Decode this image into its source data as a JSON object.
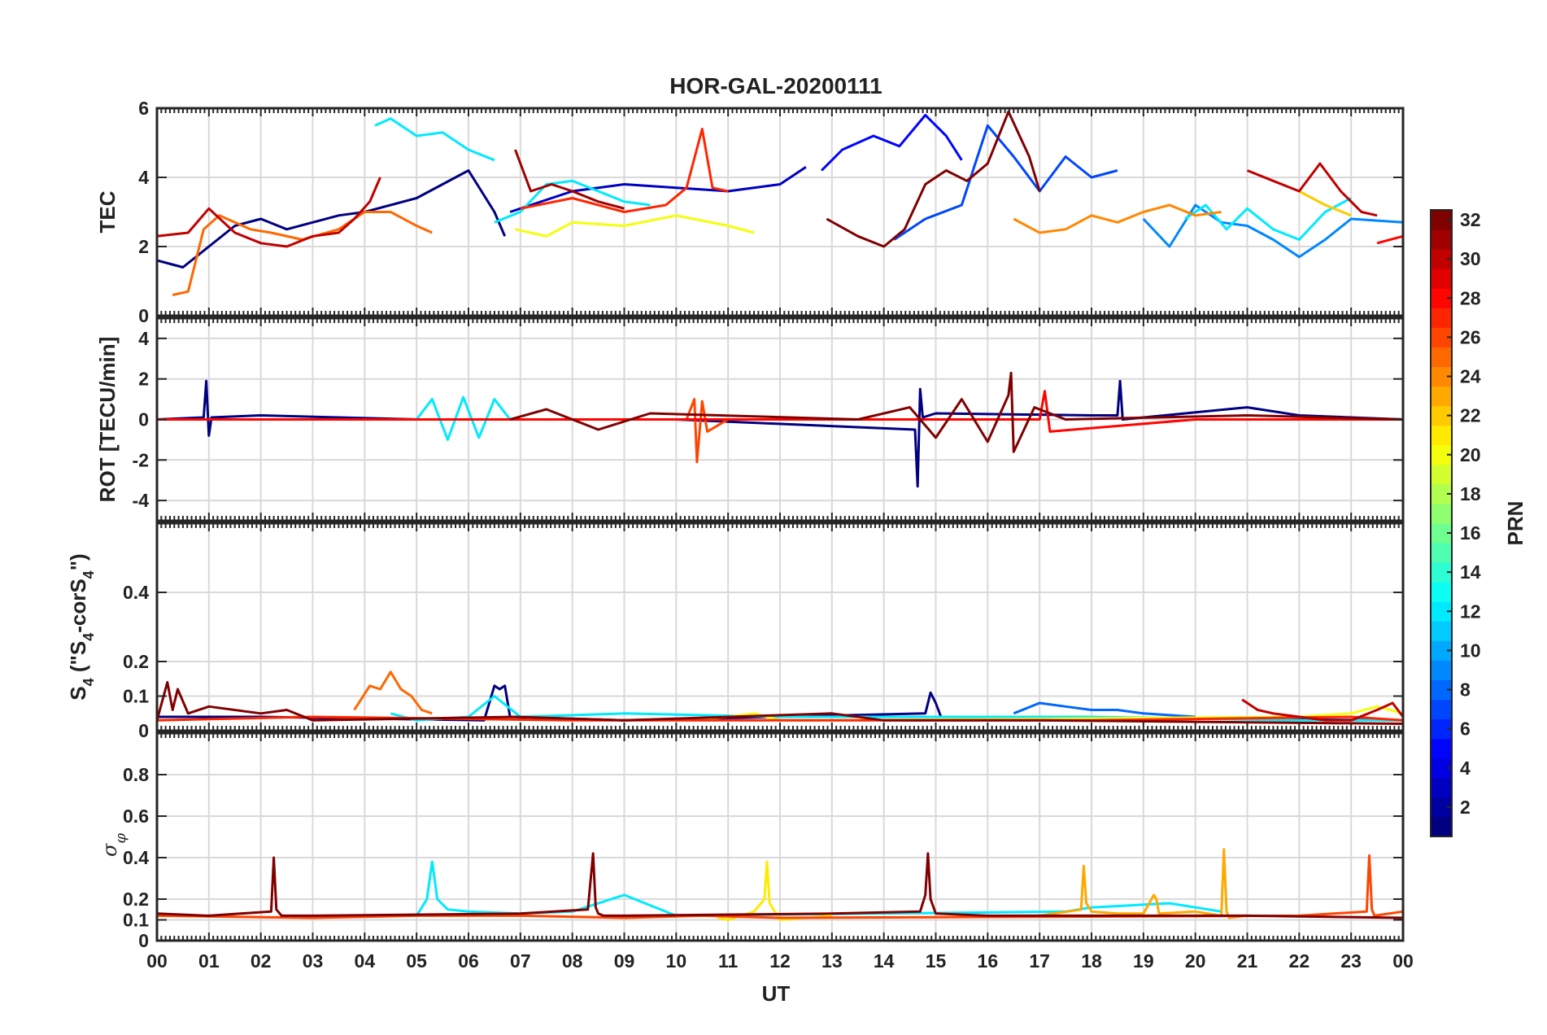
{
  "figure": {
    "title": "HOR-GAL-20200111",
    "xlabel": "UT",
    "x_ticklabels": [
      "00",
      "01",
      "02",
      "03",
      "04",
      "05",
      "06",
      "07",
      "08",
      "09",
      "10",
      "11",
      "12",
      "13",
      "14",
      "15",
      "16",
      "17",
      "18",
      "19",
      "20",
      "21",
      "22",
      "23",
      "00"
    ],
    "colorbar_label": "PRN"
  },
  "chart_data": [
    {
      "type": "line",
      "panel": "TEC",
      "ylabel": "TEC",
      "ylim": [
        0,
        6
      ],
      "yticks": [
        0,
        2,
        4,
        6
      ],
      "xlim": [
        0,
        24
      ],
      "grid": true,
      "series": [
        {
          "prn": 1,
          "x": [
            0.0,
            0.5,
            1.0,
            1.5,
            2.0,
            2.5,
            3.0,
            3.5,
            4.0,
            4.5,
            5.0,
            5.5,
            6.0,
            6.5,
            6.7
          ],
          "y": [
            1.6,
            1.4,
            2.0,
            2.6,
            2.8,
            2.5,
            2.7,
            2.9,
            3.0,
            3.2,
            3.4,
            3.8,
            4.2,
            3.0,
            2.3
          ]
        },
        {
          "prn": 3,
          "x": [
            6.8,
            8.0,
            9.0,
            10.0,
            11.0,
            12.0,
            12.5
          ],
          "y": [
            3.0,
            3.6,
            3.8,
            3.7,
            3.6,
            3.8,
            4.3
          ]
        },
        {
          "prn": 5,
          "x": [
            12.8,
            13.2,
            13.8,
            14.3,
            14.8,
            15.2,
            15.5
          ],
          "y": [
            4.2,
            4.8,
            5.2,
            4.9,
            5.8,
            5.2,
            4.5
          ]
        },
        {
          "prn": 7,
          "x": [
            14.2,
            14.8,
            15.5,
            16.0,
            16.5,
            17.0,
            17.5,
            18.0,
            18.5
          ],
          "y": [
            2.2,
            2.8,
            3.2,
            5.5,
            4.6,
            3.6,
            4.6,
            4.0,
            4.2
          ]
        },
        {
          "prn": 9,
          "x": [
            19.0,
            19.5,
            20.0,
            20.5,
            21.0,
            21.5,
            22.0,
            22.5,
            23.0,
            24.0
          ],
          "y": [
            2.8,
            2.0,
            3.2,
            2.7,
            2.6,
            2.2,
            1.7,
            2.2,
            2.8,
            2.7
          ]
        },
        {
          "prn": 12,
          "x": [
            4.2,
            4.5,
            5.0,
            5.5,
            6.0,
            6.5
          ],
          "y": [
            5.5,
            5.7,
            5.2,
            5.3,
            4.8,
            4.5
          ]
        },
        {
          "prn": 12,
          "x": [
            6.5,
            7.0,
            7.5,
            8.0,
            8.5,
            9.0,
            9.5
          ],
          "y": [
            2.7,
            3.0,
            3.8,
            3.9,
            3.6,
            3.3,
            3.2
          ]
        },
        {
          "prn": 12,
          "x": [
            19.8,
            20.2,
            20.6,
            21.0,
            21.5,
            22.0,
            22.5,
            23.0
          ],
          "y": [
            2.8,
            3.2,
            2.5,
            3.1,
            2.5,
            2.2,
            3.0,
            3.4
          ]
        },
        {
          "prn": 20,
          "x": [
            6.9,
            7.5,
            8.0,
            9.0,
            10.0,
            11.0,
            11.5
          ],
          "y": [
            2.5,
            2.3,
            2.7,
            2.6,
            2.9,
            2.6,
            2.4
          ]
        },
        {
          "prn": 22,
          "x": [
            22.0,
            22.5,
            23.0
          ],
          "y": [
            3.6,
            3.2,
            2.9
          ]
        },
        {
          "prn": 24,
          "x": [
            16.5,
            17.0,
            17.5,
            18.0,
            18.5,
            19.0,
            19.5,
            20.0,
            20.5
          ],
          "y": [
            2.8,
            2.4,
            2.5,
            2.9,
            2.7,
            3.0,
            3.2,
            2.9,
            3.0
          ]
        },
        {
          "prn": 25,
          "x": [
            0.3,
            0.6,
            0.9,
            1.2,
            1.8,
            2.2,
            2.8,
            3.5,
            4.0,
            4.5,
            5.0,
            5.3
          ],
          "y": [
            0.6,
            0.7,
            2.5,
            2.9,
            2.5,
            2.4,
            2.2,
            2.5,
            3.0,
            3.0,
            2.6,
            2.4
          ]
        },
        {
          "prn": 27,
          "x": [
            7.0,
            8.0,
            9.0,
            9.8,
            10.2,
            10.5,
            10.7,
            11.0
          ],
          "y": [
            3.1,
            3.4,
            3.0,
            3.2,
            3.7,
            5.4,
            3.7,
            3.6
          ]
        },
        {
          "prn": 28,
          "x": [
            23.5,
            24.0
          ],
          "y": [
            2.1,
            2.3
          ]
        },
        {
          "prn": 30,
          "x": [
            0.0,
            0.6,
            1.0,
            1.5,
            2.0,
            2.5,
            3.0,
            3.5,
            3.8,
            4.1,
            4.3
          ],
          "y": [
            2.3,
            2.4,
            3.1,
            2.4,
            2.1,
            2.0,
            2.3,
            2.4,
            2.8,
            3.3,
            4.0
          ]
        },
        {
          "prn": 30,
          "x": [
            21.0,
            21.5,
            22.0,
            22.4,
            22.8,
            23.2,
            23.5
          ],
          "y": [
            4.2,
            3.9,
            3.6,
            4.4,
            3.6,
            3.0,
            2.9
          ]
        },
        {
          "prn": 31,
          "x": [
            6.9,
            7.2,
            7.6,
            8.0,
            8.5,
            9.0
          ],
          "y": [
            4.8,
            3.6,
            3.8,
            3.6,
            3.3,
            3.1
          ]
        },
        {
          "prn": 32,
          "x": [
            12.9,
            13.5,
            14.0,
            14.4,
            14.8,
            15.2,
            15.6,
            16.0,
            16.4,
            16.8,
            17.0
          ],
          "y": [
            2.8,
            2.3,
            2.0,
            2.5,
            3.8,
            4.2,
            3.9,
            4.4,
            5.9,
            4.6,
            3.6
          ]
        }
      ]
    },
    {
      "type": "line",
      "panel": "ROT",
      "ylabel": "ROT [TECU/min]",
      "ylim": [
        -5,
        5
      ],
      "yticks": [
        -4,
        -2,
        0,
        2,
        4
      ],
      "xlim": [
        0,
        24
      ],
      "grid": true,
      "series": [
        {
          "prn": 1,
          "x": [
            0.0,
            0.9,
            0.95,
            1.0,
            1.05,
            2.0,
            5.0,
            10.0,
            14.6,
            14.65,
            14.7,
            14.75,
            15.0,
            18.0,
            18.5,
            18.55,
            18.6,
            21.0,
            22.0,
            24.0
          ],
          "y": [
            0.0,
            0.1,
            1.9,
            -0.8,
            0.1,
            0.2,
            0.0,
            0.0,
            -0.5,
            -3.3,
            1.5,
            0.1,
            0.3,
            0.2,
            0.2,
            1.9,
            0.0,
            0.6,
            0.2,
            0.0
          ]
        },
        {
          "prn": 12,
          "x": [
            5.0,
            5.3,
            5.6,
            5.9,
            6.2,
            6.5,
            6.8
          ],
          "y": [
            0.0,
            1.0,
            -1.0,
            1.1,
            -0.9,
            1.0,
            0.0
          ]
        },
        {
          "prn": 20,
          "x": [
            11.0,
            12.0,
            13.0
          ],
          "y": [
            0.0,
            0.0,
            0.0
          ]
        },
        {
          "prn": 26,
          "x": [
            10.2,
            10.35,
            10.4,
            10.5,
            10.6,
            11.0
          ],
          "y": [
            0.0,
            1.0,
            -2.1,
            0.9,
            -0.6,
            0.0
          ]
        },
        {
          "prn": 28,
          "x": [
            0.0,
            5.0,
            10.0,
            15.0,
            17.0,
            17.1,
            17.2,
            20.0,
            24.0
          ],
          "y": [
            0.0,
            0.0,
            0.0,
            0.0,
            0.0,
            1.4,
            -0.6,
            0.0,
            0.0
          ]
        },
        {
          "prn": 32,
          "x": [
            6.8,
            7.5,
            8.5,
            9.5,
            13.5,
            14.5,
            15.0,
            15.5,
            16.0,
            16.4,
            16.45,
            16.5,
            16.9,
            17.5,
            21.0,
            24.0
          ],
          "y": [
            0.0,
            0.5,
            -0.5,
            0.3,
            0.0,
            0.6,
            -0.9,
            1.0,
            -1.1,
            1.2,
            2.3,
            -1.6,
            0.6,
            0.0,
            0.2,
            0.0
          ]
        }
      ]
    },
    {
      "type": "line",
      "panel": "S4",
      "ylabel": "S4 (\"S4-corS4\")",
      "ylim": [
        0,
        0.6
      ],
      "yticks": [
        0,
        0.1,
        0.2,
        0.4
      ],
      "xlim": [
        0,
        24
      ],
      "grid": true,
      "series": [
        {
          "prn": 1,
          "x": [
            0.0,
            2.0,
            6.3,
            6.5,
            6.6,
            6.7,
            6.8,
            9.0,
            14.8,
            14.9,
            15.0,
            15.1,
            16.0,
            24.0
          ],
          "y": [
            0.04,
            0.04,
            0.03,
            0.13,
            0.12,
            0.13,
            0.04,
            0.03,
            0.05,
            0.11,
            0.08,
            0.04,
            0.04,
            0.03
          ]
        },
        {
          "prn": 8,
          "x": [
            16.5,
            17.0,
            17.5,
            18.0,
            18.5,
            19.0,
            20.0
          ],
          "y": [
            0.05,
            0.08,
            0.07,
            0.06,
            0.06,
            0.05,
            0.04
          ]
        },
        {
          "prn": 12,
          "x": [
            4.5,
            5.0,
            6.0,
            6.5,
            7.0,
            9.0,
            12.0,
            18.0,
            22.0,
            24.0
          ],
          "y": [
            0.05,
            0.03,
            0.04,
            0.1,
            0.04,
            0.05,
            0.04,
            0.04,
            0.03,
            0.03
          ]
        },
        {
          "prn": 20,
          "x": [
            10.0,
            11.0,
            11.5,
            12.0,
            13.0,
            22.0,
            23.0,
            23.5,
            24.0
          ],
          "y": [
            0.03,
            0.04,
            0.05,
            0.03,
            0.03,
            0.04,
            0.05,
            0.07,
            0.05
          ]
        },
        {
          "prn": 25,
          "x": [
            3.8,
            4.1,
            4.3,
            4.5,
            4.7,
            4.9,
            5.1,
            5.3
          ],
          "y": [
            0.06,
            0.13,
            0.12,
            0.17,
            0.12,
            0.1,
            0.06,
            0.05
          ]
        },
        {
          "prn": 27,
          "x": [
            0.0,
            3.0,
            8.0,
            13.0,
            18.0,
            23.0,
            24.0
          ],
          "y": [
            0.03,
            0.04,
            0.03,
            0.03,
            0.03,
            0.04,
            0.03
          ]
        },
        {
          "prn": 30,
          "x": [
            20.9,
            21.2,
            21.5,
            22.0,
            22.5,
            23.0,
            23.5,
            23.8,
            24.0
          ],
          "y": [
            0.09,
            0.06,
            0.05,
            0.04,
            0.03,
            0.03,
            0.06,
            0.08,
            0.04
          ]
        },
        {
          "prn": 32,
          "x": [
            0.0,
            0.2,
            0.3,
            0.4,
            0.6,
            1.0,
            2.0,
            2.5,
            3.0,
            6.9,
            9.0,
            13.0,
            14.0,
            17.0,
            24.0
          ],
          "y": [
            0.03,
            0.14,
            0.06,
            0.12,
            0.05,
            0.07,
            0.05,
            0.06,
            0.03,
            0.04,
            0.03,
            0.05,
            0.03,
            0.03,
            0.02
          ]
        }
      ]
    },
    {
      "type": "line",
      "panel": "sigma_phi",
      "ylabel": "σφ",
      "ylim": [
        0,
        1.0
      ],
      "yticks": [
        0,
        0.1,
        0.2,
        0.4,
        0.6,
        0.8
      ],
      "xlim": [
        0,
        24
      ],
      "grid": true,
      "series": [
        {
          "prn": 12,
          "x": [
            5.0,
            5.2,
            5.3,
            5.4,
            5.6,
            6.0,
            7.0,
            8.0,
            9.0,
            10.0,
            17.5,
            18.0,
            19.5,
            20.0,
            20.5
          ],
          "y": [
            0.12,
            0.2,
            0.38,
            0.2,
            0.15,
            0.14,
            0.13,
            0.14,
            0.22,
            0.12,
            0.14,
            0.16,
            0.18,
            0.16,
            0.14
          ]
        },
        {
          "prn": 21,
          "x": [
            10.8,
            11.0,
            11.5,
            11.7,
            11.75,
            11.8,
            12.0,
            12.5,
            13.0
          ],
          "y": [
            0.11,
            0.1,
            0.14,
            0.2,
            0.38,
            0.18,
            0.1,
            0.11,
            0.12
          ]
        },
        {
          "prn": 23,
          "x": [
            17.0,
            17.8,
            17.85,
            17.9,
            18.0,
            18.5,
            19.0,
            19.2,
            19.25,
            19.3,
            20.0,
            20.5,
            20.55,
            20.6,
            20.65,
            21.0
          ],
          "y": [
            0.12,
            0.15,
            0.36,
            0.18,
            0.14,
            0.13,
            0.13,
            0.22,
            0.2,
            0.13,
            0.14,
            0.12,
            0.44,
            0.14,
            0.11,
            0.12
          ]
        },
        {
          "prn": 26,
          "x": [
            0.0,
            3.0,
            5.0,
            7.0,
            9.0,
            10.5,
            12.0,
            22.0,
            23.3,
            23.35,
            23.4,
            23.45,
            24.0
          ],
          "y": [
            0.12,
            0.11,
            0.12,
            0.12,
            0.11,
            0.12,
            0.11,
            0.12,
            0.14,
            0.41,
            0.15,
            0.12,
            0.14
          ]
        },
        {
          "prn": 32,
          "x": [
            0.0,
            1.0,
            2.2,
            2.25,
            2.3,
            2.4,
            3.0,
            7.0,
            8.3,
            8.4,
            8.45,
            8.5,
            8.6,
            9.0,
            13.0,
            14.7,
            14.8,
            14.85,
            14.9,
            15.0,
            16.0,
            21.0,
            24.0
          ],
          "y": [
            0.13,
            0.12,
            0.14,
            0.4,
            0.15,
            0.12,
            0.12,
            0.13,
            0.15,
            0.42,
            0.16,
            0.13,
            0.12,
            0.12,
            0.13,
            0.14,
            0.22,
            0.42,
            0.2,
            0.13,
            0.12,
            0.12,
            0.11
          ]
        }
      ]
    }
  ],
  "colorbar": {
    "min": 1,
    "max": 32,
    "ticks": [
      2,
      4,
      6,
      8,
      10,
      12,
      14,
      16,
      18,
      20,
      22,
      24,
      26,
      28,
      30,
      32
    ],
    "colormap": "jet"
  }
}
